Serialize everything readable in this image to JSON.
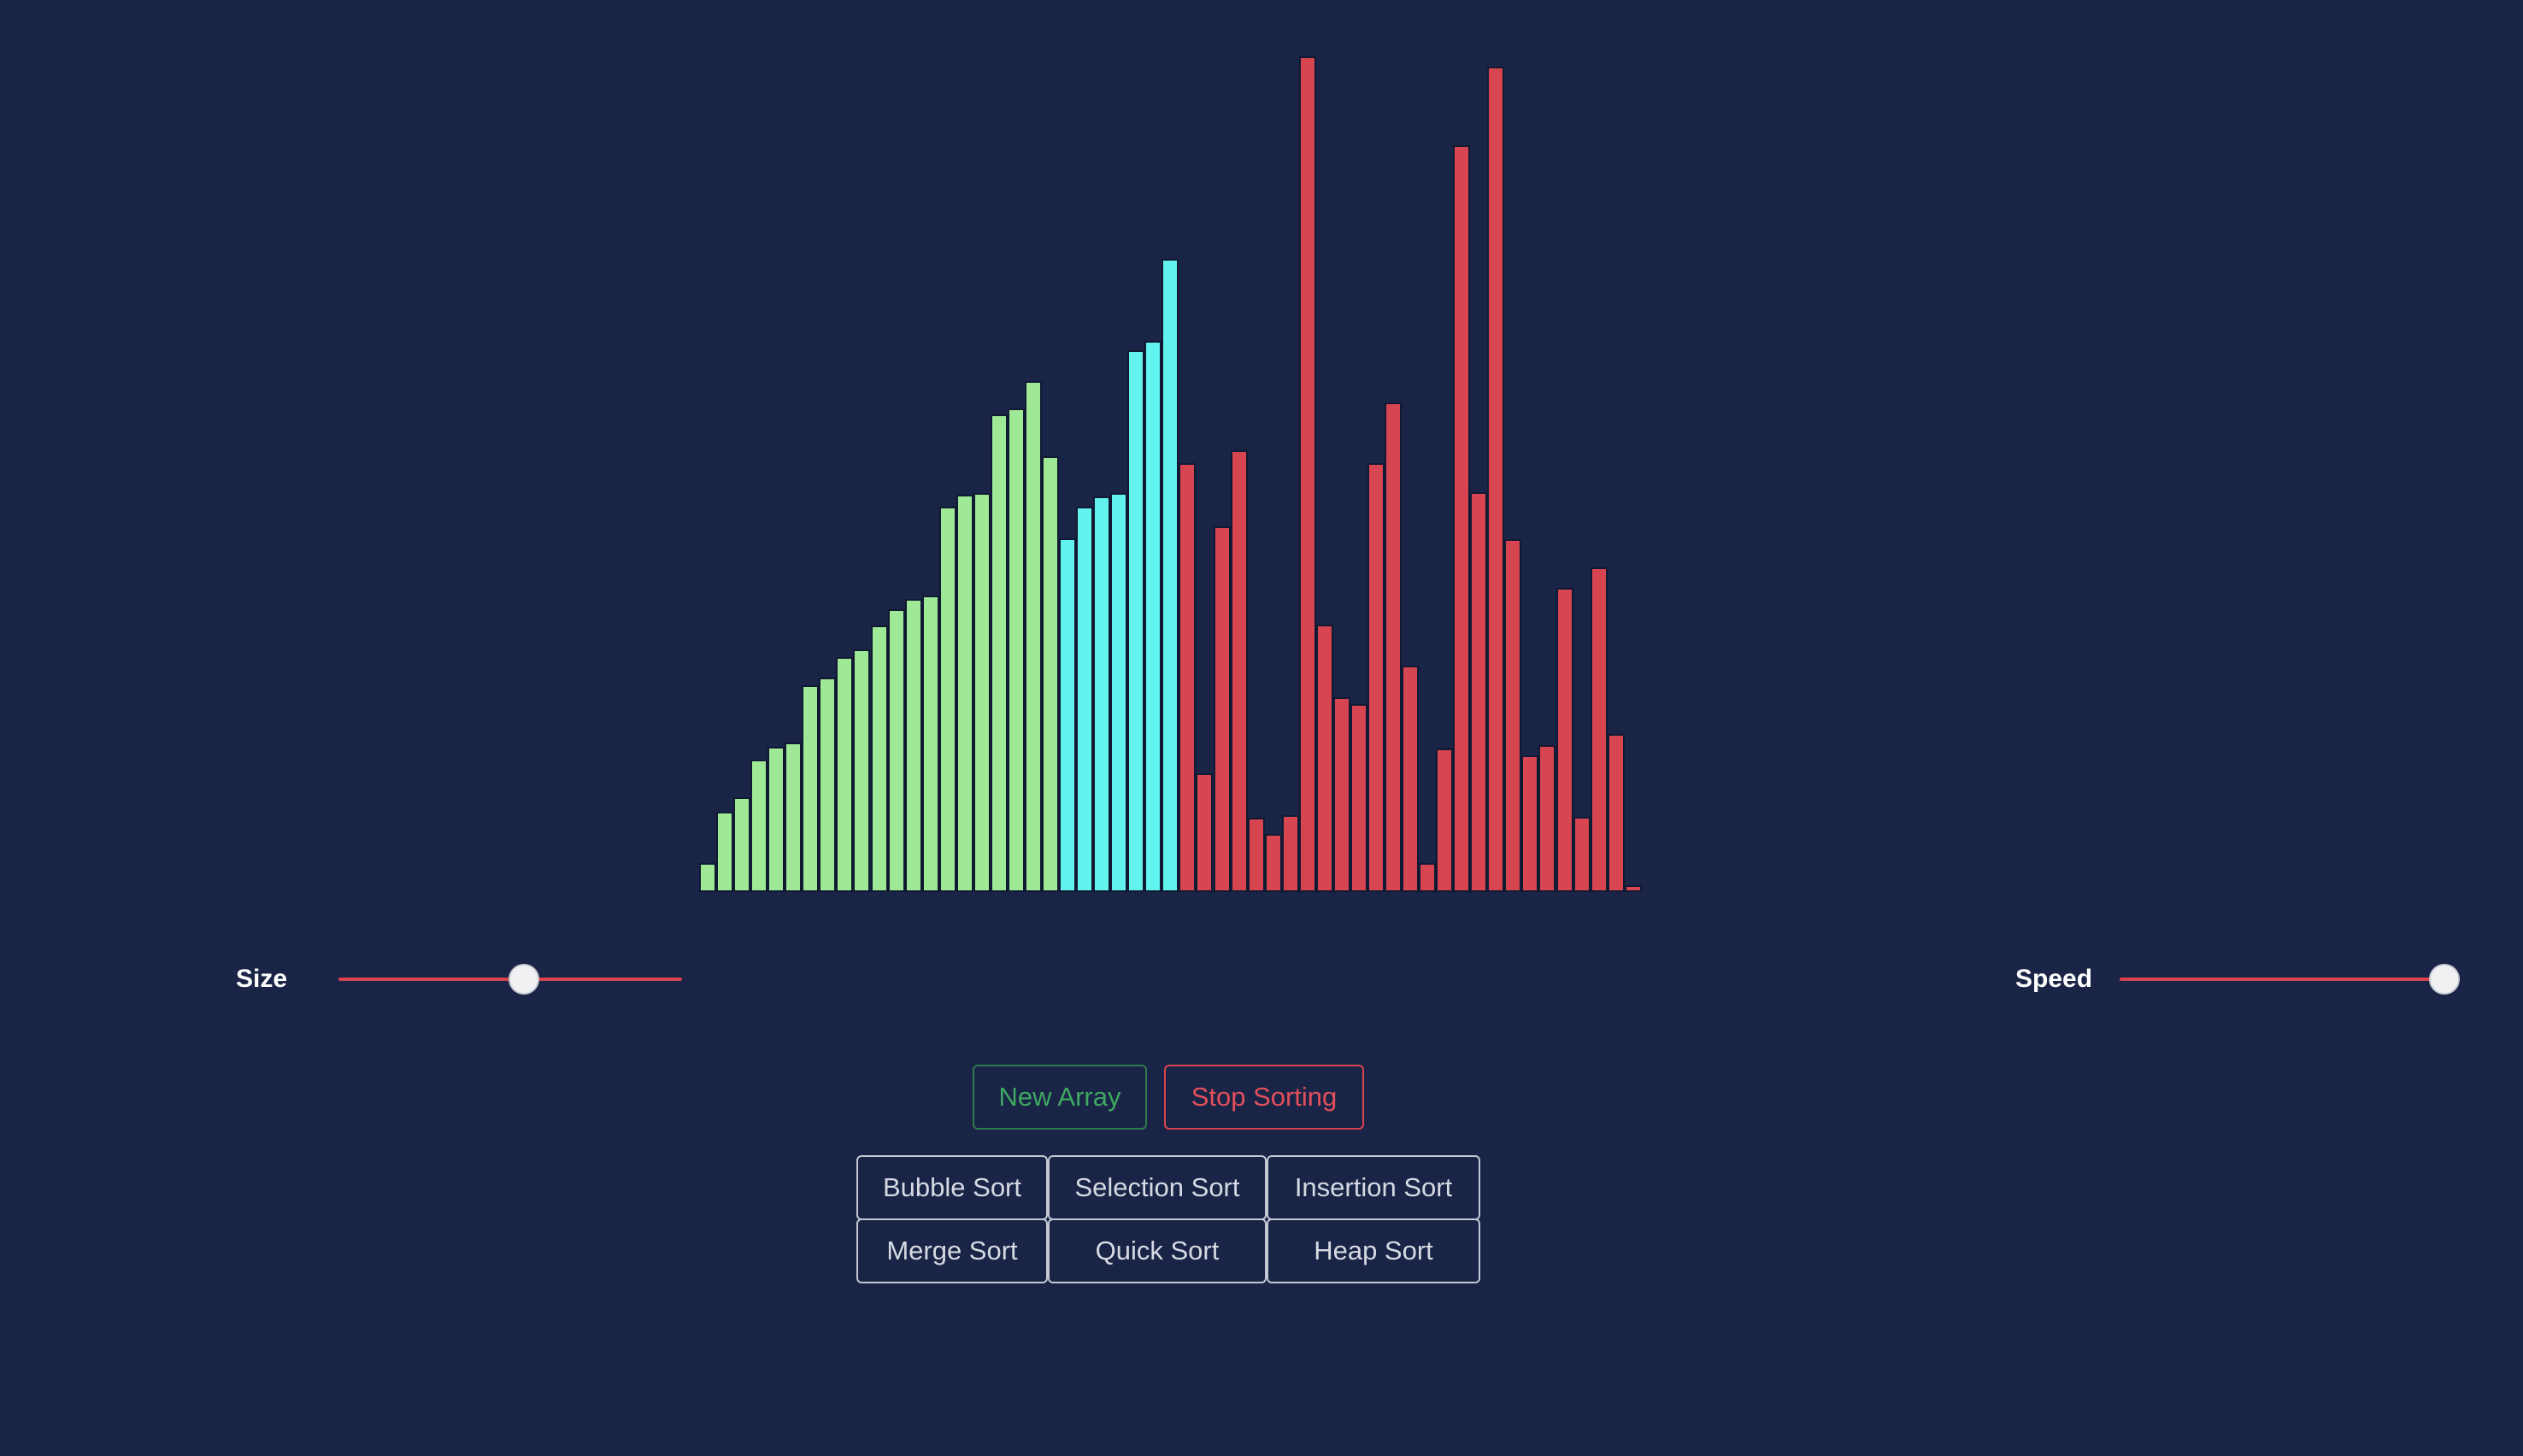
{
  "bar_colors": {
    "sorted": "#9ee896",
    "active": "#63f3ef",
    "unsorted": "#d64550",
    "border": "#111a33",
    "accent": "#d9434f",
    "background": "#192446"
  },
  "bars": [
    {
      "value": 3.5,
      "state": "sorted"
    },
    {
      "value": 9.6,
      "state": "sorted"
    },
    {
      "value": 11.4,
      "state": "sorted"
    },
    {
      "value": 15.8,
      "state": "sorted"
    },
    {
      "value": 17.4,
      "state": "sorted"
    },
    {
      "value": 17.9,
      "state": "sorted"
    },
    {
      "value": 24.7,
      "state": "sorted"
    },
    {
      "value": 25.7,
      "state": "sorted"
    },
    {
      "value": 28.1,
      "state": "sorted"
    },
    {
      "value": 29.0,
      "state": "sorted"
    },
    {
      "value": 31.9,
      "state": "sorted"
    },
    {
      "value": 33.8,
      "state": "sorted"
    },
    {
      "value": 35.1,
      "state": "sorted"
    },
    {
      "value": 35.5,
      "state": "sorted"
    },
    {
      "value": 46.1,
      "state": "sorted"
    },
    {
      "value": 47.5,
      "state": "sorted"
    },
    {
      "value": 47.8,
      "state": "sorted"
    },
    {
      "value": 57.2,
      "state": "sorted"
    },
    {
      "value": 57.9,
      "state": "sorted"
    },
    {
      "value": 61.1,
      "state": "sorted"
    },
    {
      "value": 52.1,
      "state": "sorted"
    },
    {
      "value": 42.3,
      "state": "active"
    },
    {
      "value": 46.1,
      "state": "active"
    },
    {
      "value": 47.3,
      "state": "active"
    },
    {
      "value": 47.7,
      "state": "active"
    },
    {
      "value": 64.8,
      "state": "active"
    },
    {
      "value": 66.0,
      "state": "active"
    },
    {
      "value": 75.8,
      "state": "active"
    },
    {
      "value": 51.3,
      "state": "unsorted"
    },
    {
      "value": 14.2,
      "state": "unsorted"
    },
    {
      "value": 43.8,
      "state": "unsorted"
    },
    {
      "value": 52.9,
      "state": "unsorted"
    },
    {
      "value": 8.9,
      "state": "unsorted"
    },
    {
      "value": 7.0,
      "state": "unsorted"
    },
    {
      "value": 9.2,
      "state": "unsorted"
    },
    {
      "value": 100.0,
      "state": "unsorted"
    },
    {
      "value": 32.0,
      "state": "unsorted"
    },
    {
      "value": 23.3,
      "state": "unsorted"
    },
    {
      "value": 22.5,
      "state": "unsorted"
    },
    {
      "value": 51.3,
      "state": "unsorted"
    },
    {
      "value": 58.6,
      "state": "unsorted"
    },
    {
      "value": 27.1,
      "state": "unsorted"
    },
    {
      "value": 3.5,
      "state": "unsorted"
    },
    {
      "value": 17.2,
      "state": "unsorted"
    },
    {
      "value": 89.4,
      "state": "unsorted"
    },
    {
      "value": 47.9,
      "state": "unsorted"
    },
    {
      "value": 98.8,
      "state": "unsorted"
    },
    {
      "value": 42.2,
      "state": "unsorted"
    },
    {
      "value": 16.4,
      "state": "unsorted"
    },
    {
      "value": 17.6,
      "state": "unsorted"
    },
    {
      "value": 36.4,
      "state": "unsorted"
    },
    {
      "value": 9.0,
      "state": "unsorted"
    },
    {
      "value": 38.9,
      "state": "unsorted"
    },
    {
      "value": 18.9,
      "state": "unsorted"
    },
    {
      "value": 0.8,
      "state": "unsorted"
    }
  ],
  "controls": {
    "size": {
      "label": "Size",
      "level": 0.54
    },
    "speed": {
      "label": "Speed",
      "level": 1.0
    }
  },
  "buttons": {
    "new_array": "New Array",
    "stop_sorting": "Stop Sorting"
  },
  "algorithms": {
    "bubble": "Bubble Sort",
    "selection": "Selection Sort",
    "insertion": "Insertion Sort",
    "merge": "Merge Sort",
    "quick": "Quick Sort",
    "heap": "Heap Sort"
  }
}
